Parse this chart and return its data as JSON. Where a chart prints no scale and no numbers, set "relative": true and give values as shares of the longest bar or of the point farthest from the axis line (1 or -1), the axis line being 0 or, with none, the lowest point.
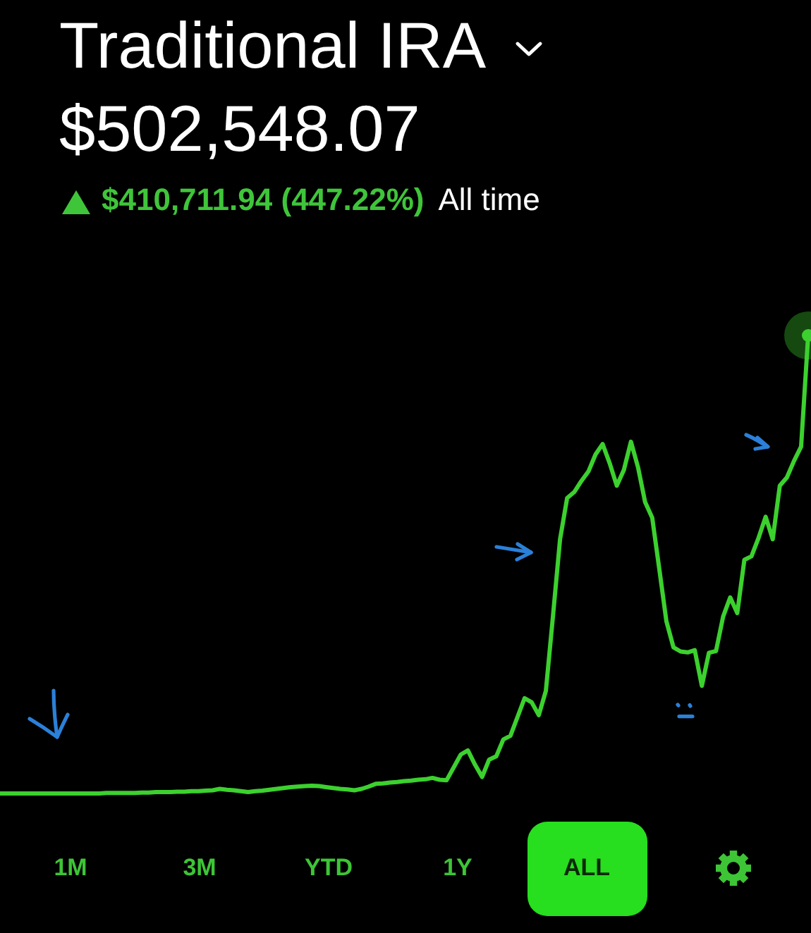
{
  "chart_data": {
    "type": "line",
    "title": "Traditional IRA",
    "subtitle": "$502,548.07",
    "annotations": [
      "$410,711.94 (447.22%)",
      "All time",
      "1M",
      "3M",
      "YTD",
      "1Y",
      "ALL"
    ],
    "relative": true,
    "categories": [
      null,
      null,
      null,
      null,
      null,
      null,
      null,
      null,
      null,
      null,
      null,
      null,
      null,
      null,
      null,
      null,
      null,
      null,
      null,
      null,
      null,
      null,
      null,
      null,
      null,
      null,
      null,
      null,
      null,
      null,
      null,
      null,
      null,
      null,
      null,
      null,
      null,
      null,
      null,
      null,
      null,
      null,
      null,
      null,
      null,
      null,
      null,
      null,
      null,
      null,
      null,
      null,
      null,
      null,
      null,
      null,
      null,
      null,
      null,
      null,
      null,
      null,
      null,
      null,
      null,
      null,
      null,
      null,
      null,
      null,
      null,
      null,
      null,
      null,
      null,
      null,
      null,
      null,
      null,
      null,
      null,
      null,
      null,
      null,
      null,
      null,
      null,
      null,
      null,
      null,
      null,
      null,
      null,
      null,
      null,
      null,
      null,
      null,
      null,
      null,
      null,
      null,
      null,
      null,
      null,
      null,
      null,
      null,
      null,
      null,
      null,
      null,
      null,
      null,
      null
    ],
    "series": [
      {
        "color": "#3cd12e",
        "values": [
          0,
          0,
          0,
          0,
          0,
          0,
          0,
          0,
          0,
          0,
          0,
          0,
          0,
          0,
          0,
          0.001,
          0.001,
          0.001,
          0.001,
          0.001,
          0.002,
          0.002,
          0.003,
          0.003,
          0.003,
          0.004,
          0.004,
          0.005,
          0.005,
          0.006,
          0.007,
          0.01,
          0.008,
          0.007,
          0.005,
          0.003,
          0.005,
          0.006,
          0.008,
          0.01,
          0.012,
          0.014,
          0.015,
          0.016,
          0.017,
          0.016,
          0.014,
          0.012,
          0.01,
          0.009,
          0.007,
          0.01,
          0.015,
          0.021,
          0.022,
          0.024,
          0.025,
          0.027,
          0.028,
          0.03,
          0.031,
          0.034,
          0.03,
          0.029,
          0.057,
          0.085,
          0.094,
          0.063,
          0.036,
          0.074,
          0.081,
          0.118,
          0.126,
          0.167,
          0.208,
          0.199,
          0.171,
          0.224,
          0.387,
          0.555,
          0.645,
          0.658,
          0.682,
          0.703,
          0.74,
          0.763,
          0.721,
          0.672,
          0.706,
          0.768,
          0.712,
          0.636,
          0.602,
          0.49,
          0.376,
          0.319,
          0.31,
          0.308,
          0.313,
          0.235,
          0.307,
          0.311,
          0.386,
          0.428,
          0.394,
          0.51,
          0.518,
          0.558,
          0.604,
          0.555,
          0.672,
          0.69,
          0.726,
          0.757,
          1
        ]
      }
    ]
  }
}
